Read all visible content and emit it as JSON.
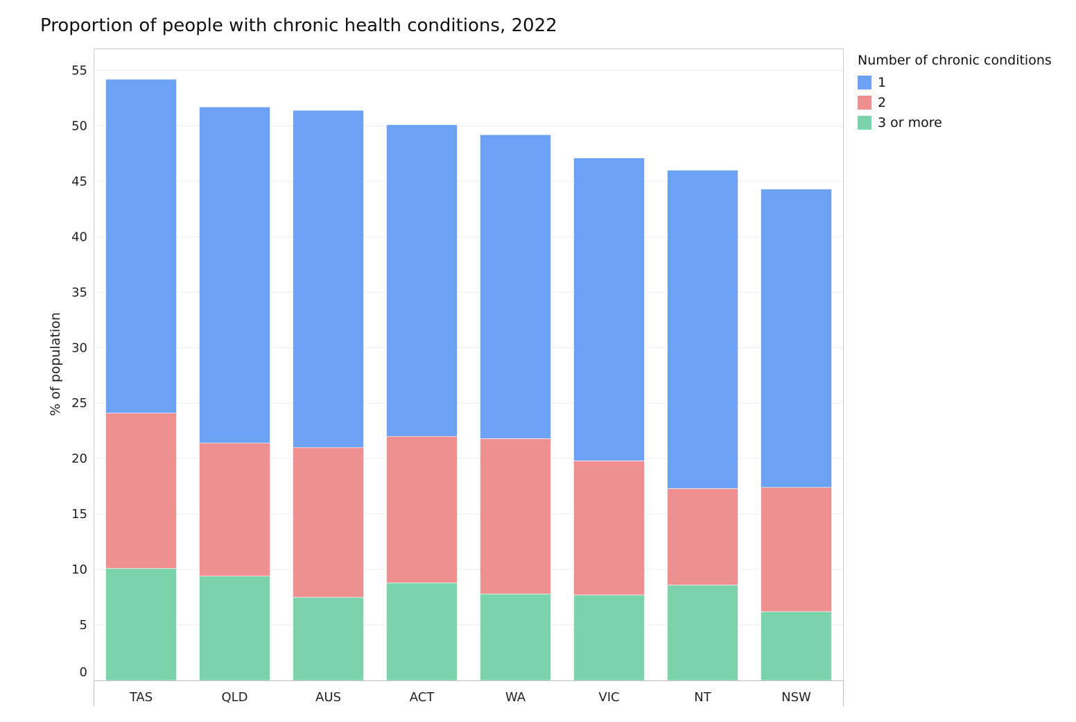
{
  "chart_data": {
    "type": "bar",
    "stacked": true,
    "title": "Proportion of people with chronic health conditions, 2022",
    "xlabel": "",
    "ylabel": "% of population",
    "ylim": [
      0,
      56
    ],
    "yticks": [
      0,
      5,
      10,
      15,
      20,
      25,
      30,
      35,
      40,
      45,
      50,
      55
    ],
    "categories": [
      "TAS",
      "QLD",
      "AUS",
      "ACT",
      "WA",
      "VIC",
      "NT",
      "NSW"
    ],
    "series": [
      {
        "name": "3 or more",
        "color": "#7bd3ac",
        "values": [
          10.1,
          9.4,
          7.5,
          8.8,
          7.8,
          7.7,
          8.6,
          6.2
        ]
      },
      {
        "name": "2",
        "color": "#f08f8f",
        "values": [
          14.0,
          12.0,
          13.5,
          13.2,
          14.0,
          12.1,
          8.7,
          11.2
        ]
      },
      {
        "name": "1",
        "color": "#6ca2f4",
        "values": [
          30.1,
          30.3,
          30.4,
          28.1,
          27.4,
          27.3,
          28.7,
          26.9
        ]
      }
    ],
    "legend": {
      "title": "Number of chronic conditions",
      "placement": "right",
      "items": [
        "1",
        "2",
        "3 or more"
      ]
    },
    "grid": true
  }
}
